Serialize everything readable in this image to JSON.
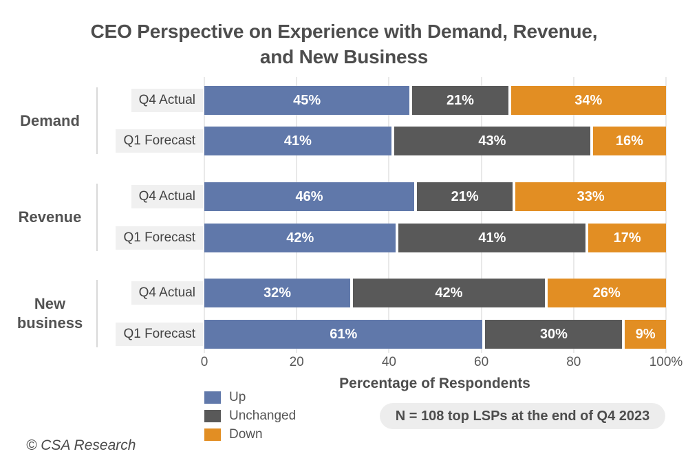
{
  "title": {
    "line1": "CEO Perspective on Experience with Demand, Revenue,",
    "line2": "and New Business"
  },
  "chart_data": {
    "type": "bar",
    "orientation": "horizontal",
    "stacked": true,
    "series": [
      {
        "name": "Up",
        "color": "#6078AA"
      },
      {
        "name": "Unchanged",
        "color": "#595959"
      },
      {
        "name": "Down",
        "color": "#E28E23"
      }
    ],
    "groups": [
      {
        "label": "Demand",
        "bars": [
          {
            "label": "Q4 Actual",
            "values": [
              45,
              21,
              34
            ]
          },
          {
            "label": "Q1 Forecast",
            "values": [
              41,
              43,
              16
            ]
          }
        ]
      },
      {
        "label": "Revenue",
        "bars": [
          {
            "label": "Q4 Actual",
            "values": [
              46,
              21,
              33
            ]
          },
          {
            "label": "Q1 Forecast",
            "values": [
              42,
              41,
              17
            ]
          }
        ]
      },
      {
        "label": "New business",
        "bars": [
          {
            "label": "Q4 Actual",
            "values": [
              32,
              42,
              26
            ]
          },
          {
            "label": "Q1 Forecast",
            "values": [
              61,
              30,
              9
            ]
          }
        ]
      }
    ],
    "value_suffix": "%",
    "xlabel": "Percentage of Respondents",
    "xlim": [
      0,
      100
    ],
    "xticks": [
      "0",
      "20",
      "40",
      "60",
      "80",
      "100%"
    ],
    "grid": "vertical",
    "legend_position": "bottom-left"
  },
  "note": "N = 108 top LSPs at the end of Q4 2023",
  "footer": "© CSA Research"
}
